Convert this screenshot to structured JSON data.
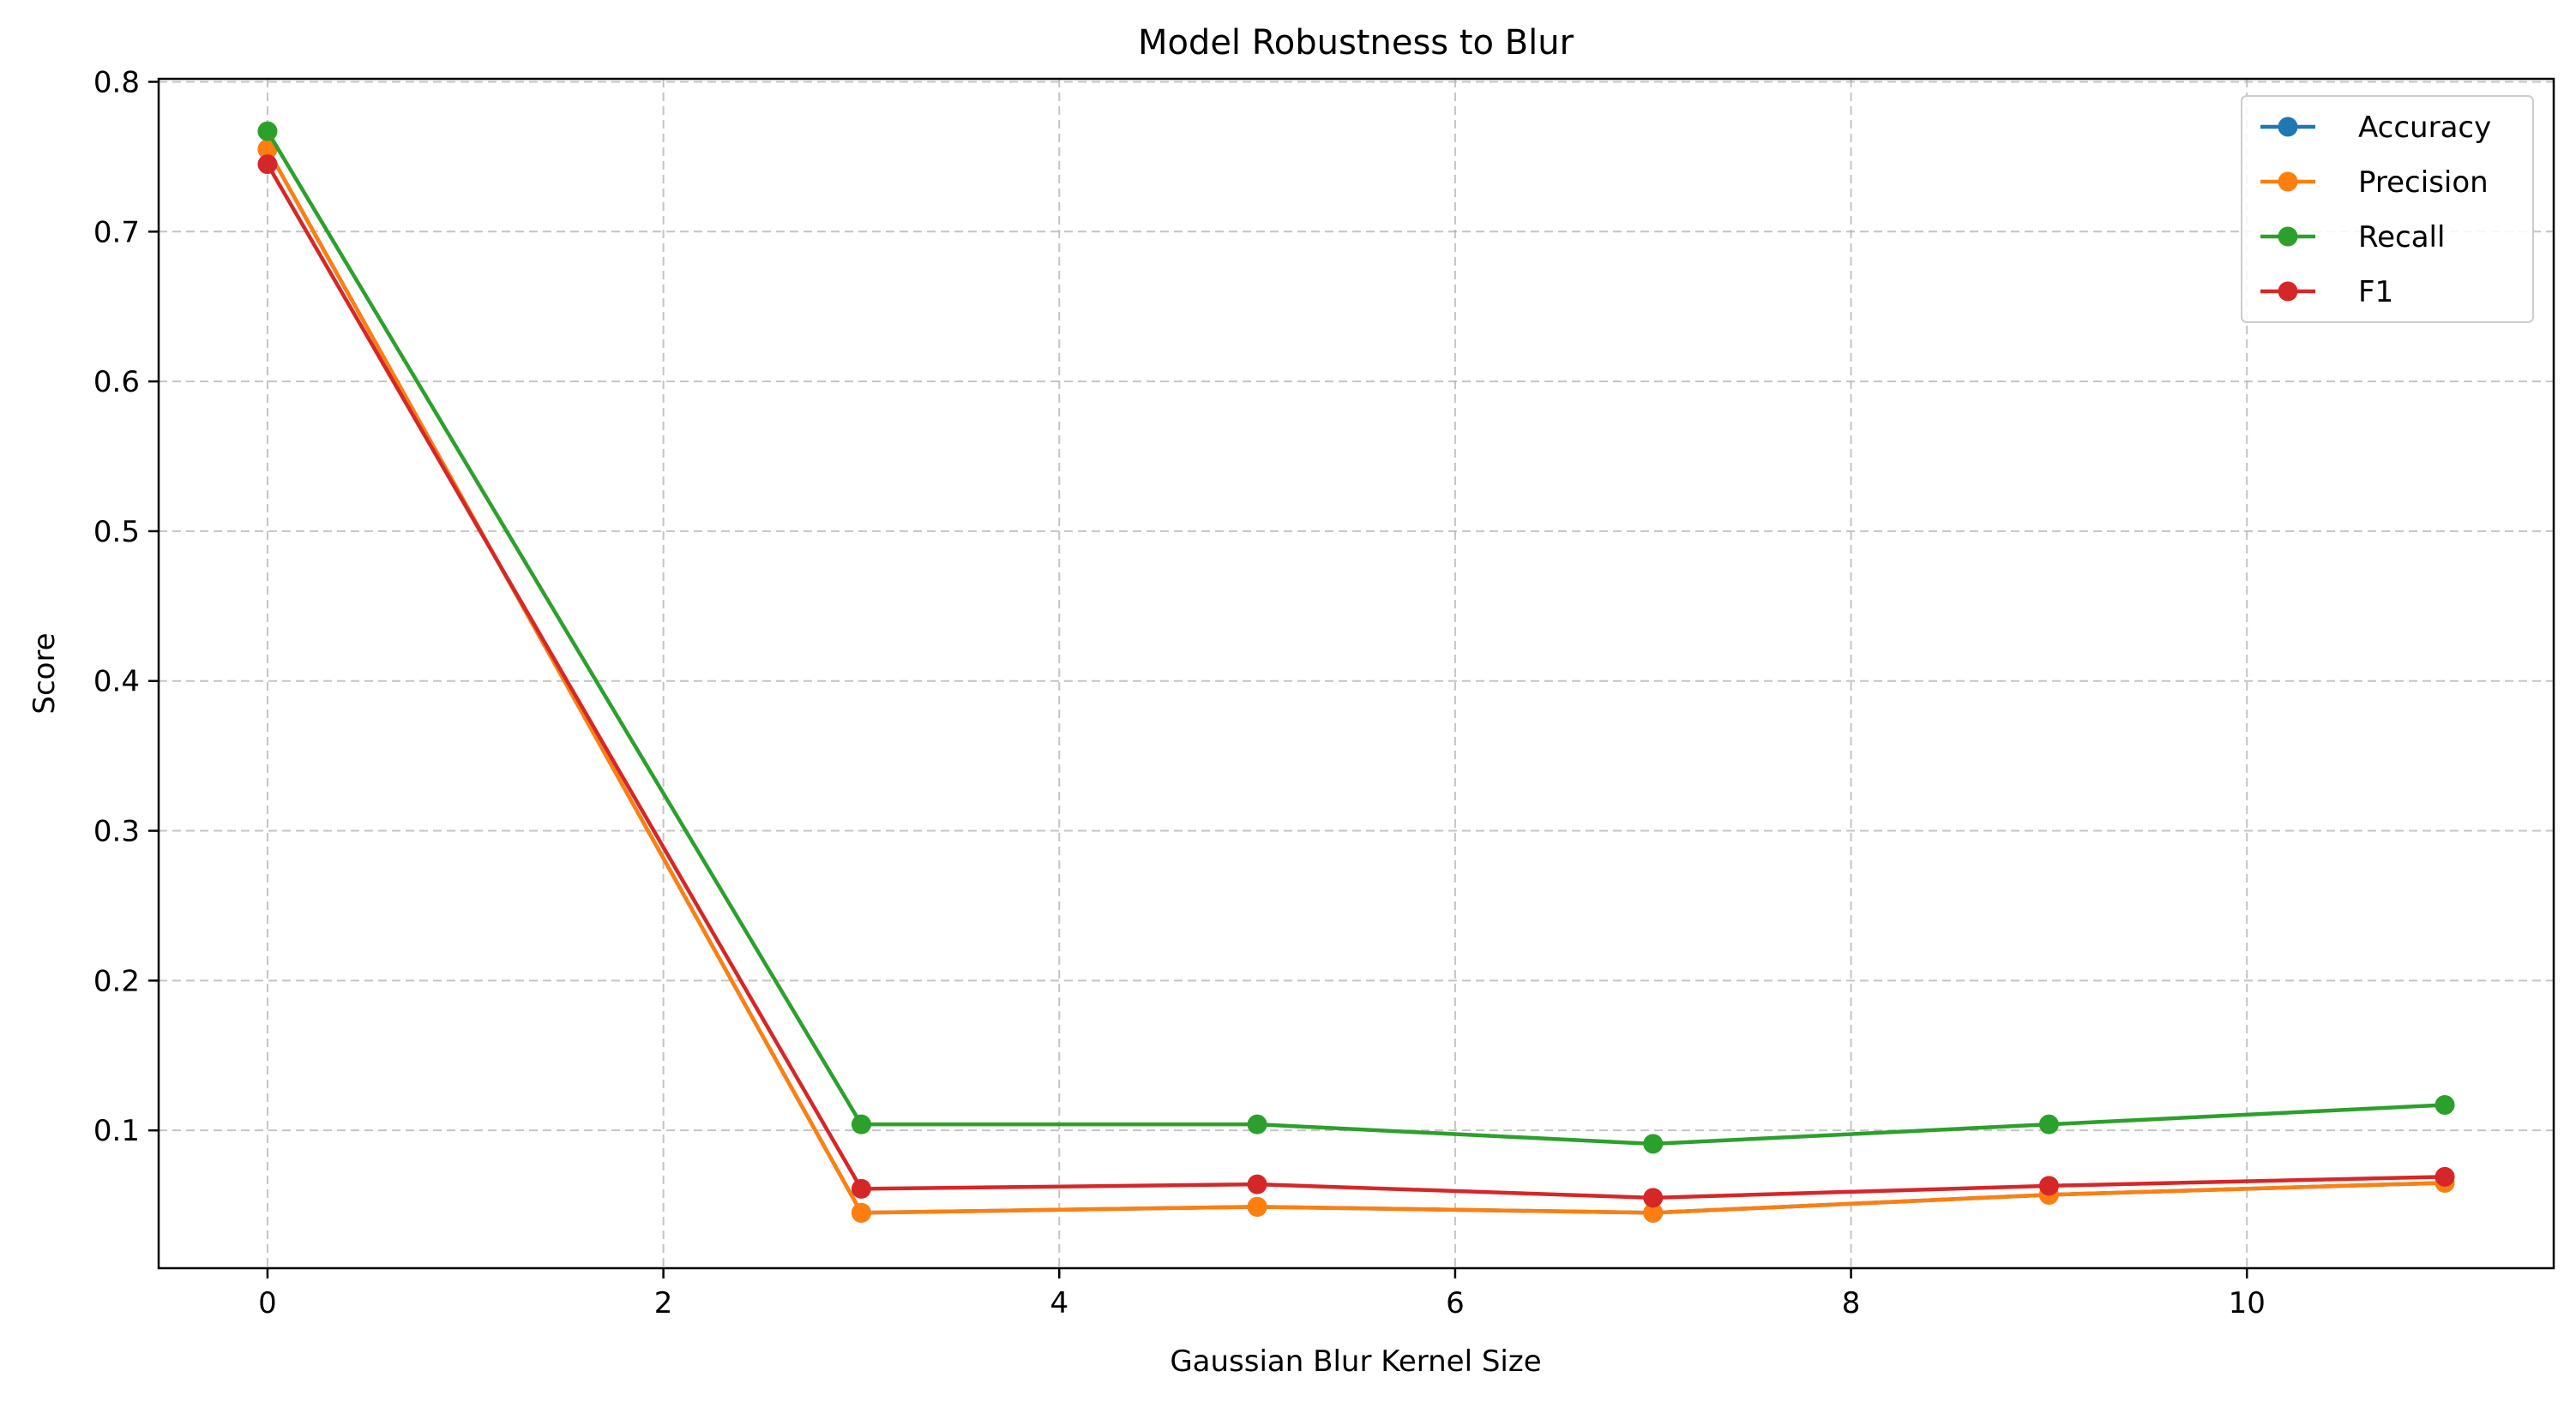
{
  "chart_data": {
    "type": "line",
    "title": "Model Robustness to Blur",
    "xlabel": "Gaussian Blur Kernel Size",
    "ylabel": "Score",
    "xlim": [
      -0.55,
      11.55
    ],
    "ylim": [
      0.008,
      0.802
    ],
    "x_ticks": [
      0,
      2,
      4,
      6,
      8,
      10
    ],
    "x_tick_labels": [
      "0",
      "2",
      "4",
      "6",
      "8",
      "10"
    ],
    "y_ticks": [
      0.1,
      0.2,
      0.3,
      0.4,
      0.5,
      0.6,
      0.7,
      0.8
    ],
    "y_tick_labels": [
      "0.1",
      "0.2",
      "0.3",
      "0.4",
      "0.5",
      "0.6",
      "0.7",
      "0.8"
    ],
    "grid": true,
    "legend_position": "top-right",
    "x": [
      0,
      3,
      5,
      7,
      9,
      11
    ],
    "series": [
      {
        "name": "Accuracy",
        "color": "#1f77b4",
        "values": [
          0.755,
          0.045,
          0.049,
          0.045,
          0.057,
          0.065
        ]
      },
      {
        "name": "Precision",
        "color": "#ff7f0e",
        "values": [
          0.755,
          0.045,
          0.049,
          0.045,
          0.057,
          0.065
        ]
      },
      {
        "name": "Recall",
        "color": "#2ca02c",
        "values": [
          0.767,
          0.104,
          0.104,
          0.091,
          0.104,
          0.117
        ]
      },
      {
        "name": "F1",
        "color": "#d62728",
        "values": [
          0.745,
          0.061,
          0.064,
          0.055,
          0.063,
          0.069
        ]
      }
    ]
  }
}
